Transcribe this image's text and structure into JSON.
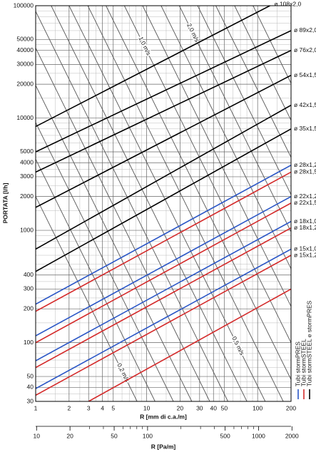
{
  "chart_data": {
    "type": "line",
    "log_x": true,
    "log_y": true,
    "grid": true,
    "x_label": "R [mm di c.a./m]",
    "y_label": "PORTATA [l/h]",
    "x2_label": "R [Pa/m]",
    "xlim": [
      1,
      200
    ],
    "xticks": [
      1,
      2,
      3,
      4,
      5,
      10,
      20,
      30,
      40,
      50,
      100,
      200
    ],
    "xminor": [
      1.5,
      2.5,
      3.5,
      4.5,
      6,
      7,
      8,
      9,
      15,
      25,
      35,
      45,
      60,
      70,
      80,
      90,
      150
    ],
    "ylim": [
      30,
      100000
    ],
    "yticks": [
      30,
      40,
      50,
      100,
      200,
      300,
      400,
      1000,
      2000,
      3000,
      4000,
      5000,
      10000,
      20000,
      30000,
      40000,
      50000,
      100000
    ],
    "yminor": [
      35,
      45,
      60,
      70,
      80,
      90,
      150,
      250,
      350,
      450,
      500,
      600,
      700,
      800,
      900,
      1500,
      2500,
      3500,
      4500,
      6000,
      7000,
      8000,
      9000,
      15000,
      25000,
      35000,
      45000,
      60000,
      70000,
      80000,
      90000
    ],
    "x2lim": [
      9.81,
      1962
    ],
    "x2ticks": [
      10,
      20,
      50,
      100,
      500,
      1000,
      2000
    ],
    "x2minor": [
      30,
      40,
      60,
      70,
      80,
      90,
      200,
      300,
      400,
      600,
      700,
      800,
      900
    ],
    "legend": [
      {
        "label": "Tubi stormPRES",
        "color": "#2a56c6"
      },
      {
        "label": "Tubi stormSTEEL",
        "color": "#d42a2a"
      },
      {
        "label": "Tubi stormSTEEL e stormPRES",
        "color": "#000000"
      }
    ],
    "series": [
      {
        "name": "ø 108x2,0",
        "color": "#000000",
        "x": [
          1,
          200
        ],
        "values": [
          8400,
          125000
        ]
      },
      {
        "name": "ø 89x2,0",
        "color": "#000000",
        "x": [
          1,
          200
        ],
        "values": [
          5000,
          60000
        ]
      },
      {
        "name": "ø 76x2,0",
        "color": "#000000",
        "x": [
          1,
          200
        ],
        "values": [
          3300,
          40000
        ]
      },
      {
        "name": "ø 54x1,5",
        "color": "#000000",
        "x": [
          1,
          200
        ],
        "values": [
          1600,
          24000
        ]
      },
      {
        "name": "ø 42x1,5",
        "color": "#000000",
        "x": [
          1,
          200
        ],
        "values": [
          680,
          13000
        ]
      },
      {
        "name": "ø 35x1,5",
        "color": "#000000",
        "x": [
          1,
          200
        ],
        "values": [
          430,
          8000
        ]
      },
      {
        "name": "ø 28x1,2",
        "color": "#2a56c6",
        "x": [
          1,
          200
        ],
        "values": [
          220,
          3800
        ]
      },
      {
        "name": "ø 28x1,5",
        "color": "#d42a2a",
        "x": [
          1,
          200
        ],
        "values": [
          190,
          3300
        ]
      },
      {
        "name": "ø 22x1,2",
        "color": "#2a56c6",
        "x": [
          1,
          200
        ],
        "values": [
          115,
          2000
        ]
      },
      {
        "name": "ø 22x1,5",
        "color": "#d42a2a",
        "x": [
          1,
          200
        ],
        "values": [
          100,
          1750
        ]
      },
      {
        "name": "ø 18x1,0",
        "color": "#2a56c6",
        "x": [
          1,
          200
        ],
        "values": [
          69,
          1200
        ]
      },
      {
        "name": "ø 18x1,2",
        "color": "#d42a2a",
        "x": [
          1,
          200
        ],
        "values": [
          60,
          1050
        ]
      },
      {
        "name": "ø 15x1,0",
        "color": "#2a56c6",
        "x": [
          1,
          200
        ],
        "values": [
          39,
          680
        ]
      },
      {
        "name": "ø 15x1,2",
        "color": "#d42a2a",
        "x": [
          1,
          200
        ],
        "values": [
          34,
          600
        ]
      },
      {
        "color": "#d42a2a",
        "x": [
          3,
          200
        ],
        "values": [
          30,
          300
        ]
      }
    ],
    "velocity_color": "#555555",
    "velocity_lines": [
      {
        "label": "0,2 m/s",
        "x": [
          1,
          8.2
        ],
        "values": [
          2000,
          30
        ]
      },
      {
        "label": null,
        "x": [
          1,
          11.9
        ],
        "values": [
          4300,
          30
        ]
      },
      {
        "label": null,
        "x": [
          1,
          17.4
        ],
        "values": [
          9100,
          30
        ]
      },
      {
        "label": null,
        "x": [
          1,
          25.5
        ],
        "values": [
          19500,
          30
        ]
      },
      {
        "label": null,
        "x": [
          1,
          37
        ],
        "values": [
          42000,
          30
        ]
      },
      {
        "label": null,
        "x": [
          1,
          54
        ],
        "values": [
          89000,
          30
        ]
      },
      {
        "label": null,
        "x": [
          1.38,
          80
        ],
        "values": [
          100000,
          30
        ]
      },
      {
        "label": "0,5 m/s",
        "x": [
          2.0,
          117
        ],
        "values": [
          100000,
          30
        ]
      },
      {
        "label": null,
        "x": [
          2.95,
          170
        ],
        "values": [
          100000,
          30
        ]
      },
      {
        "label": null,
        "x": [
          4.3,
          200
        ],
        "values": [
          100000,
          47
        ]
      },
      {
        "label": "1,0 m/s",
        "x": [
          6.3,
          200
        ],
        "values": [
          100000,
          100
        ]
      },
      {
        "label": null,
        "x": [
          9.2,
          200
        ],
        "values": [
          100000,
          210
        ]
      },
      {
        "label": null,
        "x": [
          13.5,
          200
        ],
        "values": [
          100000,
          455
        ]
      },
      {
        "label": "2,0 m/s",
        "x": [
          19.7,
          200
        ],
        "values": [
          100000,
          970
        ]
      },
      {
        "label": null,
        "x": [
          28.8,
          200
        ],
        "values": [
          100000,
          2080
        ]
      },
      {
        "label": null,
        "x": [
          42,
          200
        ],
        "values": [
          100000,
          4470
        ]
      },
      {
        "label": null,
        "x": [
          62,
          200
        ],
        "values": [
          100000,
          9550
        ]
      },
      {
        "label": null,
        "x": [
          91,
          200
        ],
        "values": [
          100000,
          20400
        ]
      }
    ]
  }
}
